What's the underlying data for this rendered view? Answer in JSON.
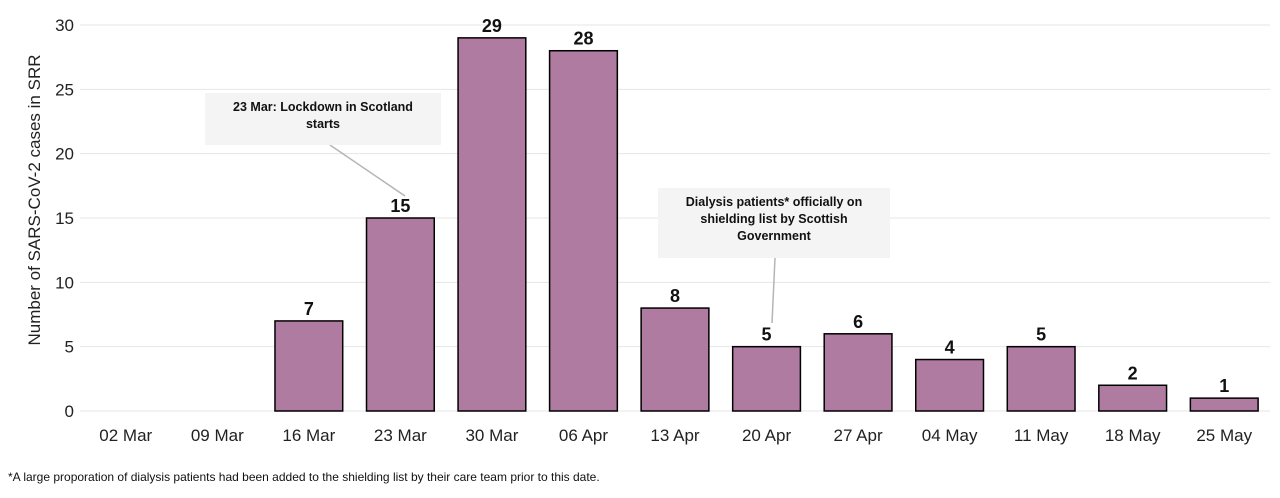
{
  "chart_data": {
    "type": "bar",
    "title": "",
    "xlabel": "",
    "ylabel": "Number of SARS-CoV-2 cases in SRR",
    "categories": [
      "02 Mar",
      "09 Mar",
      "16 Mar",
      "23 Mar",
      "30 Mar",
      "06 Apr",
      "13 Apr",
      "20 Apr",
      "27 Apr",
      "04 May",
      "11 May",
      "18 May",
      "25 May"
    ],
    "values": [
      0,
      0,
      7,
      15,
      29,
      28,
      8,
      5,
      6,
      4,
      5,
      2,
      1
    ],
    "ylim": [
      0,
      30
    ],
    "yticks": [
      0,
      5,
      10,
      15,
      20,
      25,
      30
    ],
    "grid": true,
    "bar_color": "#b07ba0",
    "annotations": [
      {
        "text": "23 Mar: Lockdown in Scotland starts",
        "category": "23 Mar"
      },
      {
        "text": "Dialysis patients* officially on shielding list by Scottish Government",
        "category": "20 Apr"
      }
    ]
  },
  "footnote": "*A large proporation of dialysis patients had been added to the shielding list by their care team prior to this date."
}
